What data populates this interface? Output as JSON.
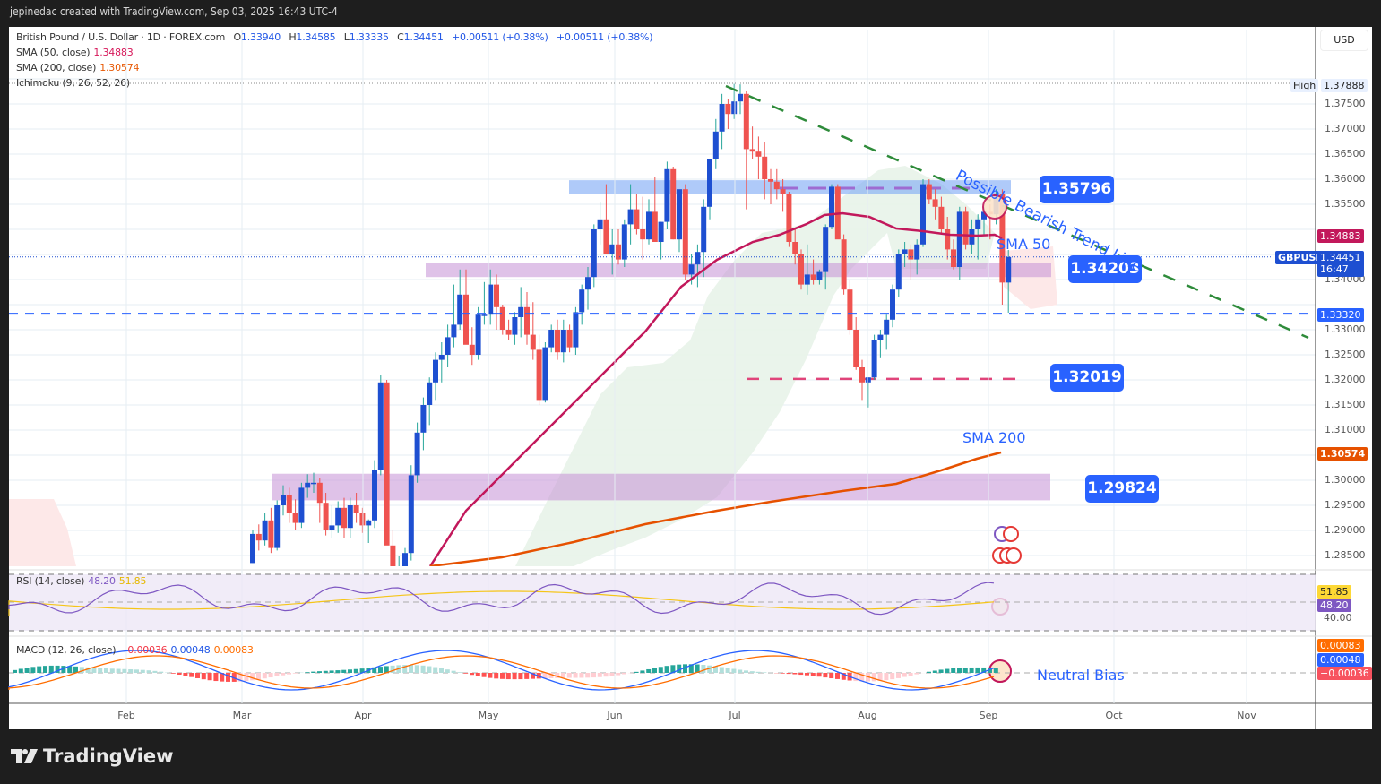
{
  "header": {
    "title": "jepinedac created with TradingView.com, Sep 03, 2025 16:43 UTC-4"
  },
  "symbol": {
    "name": "British Pound / U.S. Dollar · 1D · FOREX.com",
    "open_label": "O",
    "open": "1.33940",
    "high_label": "H",
    "high": "1.34585",
    "low_label": "L",
    "low": "1.33335",
    "close_label": "C",
    "close": "1.34451",
    "change": "+0.00511 (+0.38%)",
    "change2": "+0.00511 (+0.38%)"
  },
  "indicators": {
    "sma50": {
      "label": "SMA (50, close)",
      "value": "1.34883",
      "color": "#d6185a"
    },
    "sma200": {
      "label": "SMA (200, close)",
      "value": "1.30574",
      "color": "#e85a06"
    },
    "ichimoku": {
      "label": "Ichimoku (9, 26, 52, 26)"
    },
    "rsi": {
      "label": "RSI (14, close)",
      "value": "48.20",
      "ma_value": "51.85"
    },
    "macd": {
      "label": "MACD (12, 26, close)",
      "hist": "−0.00036",
      "macd": "0.00048",
      "signal": "0.00083"
    }
  },
  "price_axis": {
    "currency": "USD",
    "ticks": [
      "1.37500",
      "1.37000",
      "1.36500",
      "1.36000",
      "1.35500",
      "1.34000",
      "1.33000",
      "1.32500",
      "1.32000",
      "1.31500",
      "1.31000",
      "1.30000",
      "1.29500",
      "1.29000",
      "1.28500"
    ],
    "high_label": "High",
    "high_value": "1.37888",
    "sma50_tag": "1.34883",
    "symbol_tag": "GBPUSD",
    "last_price": "1.34451",
    "countdown": "16:47",
    "hline_tag": "1.33320",
    "sma200_tag": "1.30574",
    "rsi_ma_tag": "51.85",
    "rsi_tag": "48.20",
    "rsi_tick": "40.00",
    "macd_signal_tag": "0.00083",
    "macd_tag": "0.00048",
    "macd_hist_tag": "−0.00036"
  },
  "annotations": {
    "resistance_top": "1.35796",
    "pivot": "1.34203",
    "support_1": "1.32019",
    "support_2": "1.29824",
    "trend_label": "Possible Bearish Trend Line",
    "sma50_label": "SMA 50",
    "sma200_label": "SMA 200",
    "macd_note": "Neutral Bias"
  },
  "time_axis": [
    "Feb",
    "Mar",
    "Apr",
    "May",
    "Jun",
    "Jul",
    "Aug",
    "Sep",
    "Oct",
    "Nov"
  ],
  "footer": {
    "brand": "TradingView"
  },
  "chart_data": {
    "type": "candlestick",
    "title": "British Pound / U.S. Dollar · 1D · FOREX.com",
    "xlabel": "",
    "ylabel": "USD",
    "ylim": [
      1.2835,
      1.3835
    ],
    "x_ticks": [
      "Feb",
      "Mar",
      "Apr",
      "May",
      "Jun",
      "Jul",
      "Aug",
      "Sep",
      "Oct",
      "Nov"
    ],
    "ohlc_fields": [
      "open",
      "high",
      "low",
      "close"
    ],
    "candles": [
      [
        1.2835,
        1.29,
        1.2835,
        1.2893
      ],
      [
        1.2893,
        1.2912,
        1.286,
        1.288
      ],
      [
        1.288,
        1.2935,
        1.287,
        1.292
      ],
      [
        1.292,
        1.2945,
        1.2855,
        1.2865
      ],
      [
        1.2865,
        1.296,
        1.286,
        1.295
      ],
      [
        1.295,
        1.299,
        1.293,
        1.297
      ],
      [
        1.297,
        1.2985,
        1.2915,
        1.2935
      ],
      [
        1.2935,
        1.2962,
        1.29,
        1.2915
      ],
      [
        1.2915,
        1.2995,
        1.2905,
        1.2985
      ],
      [
        1.2985,
        1.3012,
        1.2965,
        1.2995
      ],
      [
        1.2995,
        1.3015,
        1.2975,
        1.2995
      ],
      [
        1.2995,
        1.3005,
        1.2915,
        1.2955
      ],
      [
        1.2955,
        1.2975,
        1.289,
        1.29
      ],
      [
        1.29,
        1.295,
        1.2885,
        1.291
      ],
      [
        1.291,
        1.2958,
        1.2895,
        1.2945
      ],
      [
        1.2945,
        1.2965,
        1.2885,
        1.2905
      ],
      [
        1.2905,
        1.2965,
        1.2885,
        1.295
      ],
      [
        1.295,
        1.2975,
        1.2915,
        1.2935
      ],
      [
        1.2935,
        1.2945,
        1.2895,
        1.291
      ],
      [
        1.291,
        1.2922,
        1.2875,
        1.292
      ],
      [
        1.292,
        1.304,
        1.2905,
        1.302
      ],
      [
        1.302,
        1.321,
        1.301,
        1.3195
      ],
      [
        1.3195,
        1.32,
        1.298,
        1.287
      ],
      [
        1.287,
        1.29,
        1.282,
        1.28
      ],
      [
        1.28,
        1.285,
        1.278,
        1.281
      ],
      [
        1.281,
        1.2865,
        1.279,
        1.2855
      ],
      [
        1.2855,
        1.303,
        1.284,
        1.301
      ],
      [
        1.301,
        1.3115,
        1.2995,
        1.3095
      ],
      [
        1.3095,
        1.3165,
        1.306,
        1.315
      ],
      [
        1.315,
        1.3205,
        1.311,
        1.3195
      ],
      [
        1.3195,
        1.3255,
        1.316,
        1.324
      ],
      [
        1.324,
        1.3275,
        1.3195,
        1.325
      ],
      [
        1.325,
        1.331,
        1.3225,
        1.3285
      ],
      [
        1.3285,
        1.339,
        1.3265,
        1.331
      ],
      [
        1.331,
        1.342,
        1.33,
        1.337
      ],
      [
        1.337,
        1.342,
        1.331,
        1.327
      ],
      [
        1.327,
        1.3305,
        1.323,
        1.325
      ],
      [
        1.325,
        1.3345,
        1.324,
        1.333
      ],
      [
        1.333,
        1.3395,
        1.331,
        1.333
      ],
      [
        1.333,
        1.342,
        1.331,
        1.339
      ],
      [
        1.339,
        1.341,
        1.33,
        1.3345
      ],
      [
        1.3345,
        1.335,
        1.329,
        1.33
      ],
      [
        1.33,
        1.332,
        1.328,
        1.329
      ],
      [
        1.329,
        1.3335,
        1.327,
        1.3325
      ],
      [
        1.3325,
        1.3385,
        1.3285,
        1.3345
      ],
      [
        1.3345,
        1.3375,
        1.327,
        1.329
      ],
      [
        1.329,
        1.3355,
        1.324,
        1.326
      ],
      [
        1.326,
        1.329,
        1.315,
        1.316
      ],
      [
        1.316,
        1.3275,
        1.3155,
        1.3265
      ],
      [
        1.3265,
        1.331,
        1.3255,
        1.33
      ],
      [
        1.33,
        1.332,
        1.324,
        1.3255
      ],
      [
        1.3255,
        1.332,
        1.3235,
        1.33
      ],
      [
        1.33,
        1.331,
        1.3255,
        1.3265
      ],
      [
        1.3265,
        1.3345,
        1.325,
        1.3335
      ],
      [
        1.3335,
        1.339,
        1.331,
        1.338
      ],
      [
        1.338,
        1.3425,
        1.334,
        1.3405
      ],
      [
        1.3405,
        1.351,
        1.3385,
        1.35
      ],
      [
        1.35,
        1.3555,
        1.347,
        1.352
      ],
      [
        1.352,
        1.359,
        1.346,
        1.345
      ],
      [
        1.345,
        1.35,
        1.341,
        1.347
      ],
      [
        1.347,
        1.35,
        1.343,
        1.344
      ],
      [
        1.344,
        1.352,
        1.3425,
        1.351
      ],
      [
        1.351,
        1.359,
        1.347,
        1.354
      ],
      [
        1.354,
        1.357,
        1.349,
        1.35
      ],
      [
        1.35,
        1.3565,
        1.344,
        1.348
      ],
      [
        1.348,
        1.356,
        1.347,
        1.3535
      ],
      [
        1.3535,
        1.3605,
        1.348,
        1.3475
      ],
      [
        1.3475,
        1.3515,
        1.344,
        1.3515
      ],
      [
        1.3515,
        1.3635,
        1.35,
        1.362
      ],
      [
        1.362,
        1.3625,
        1.348,
        1.348
      ],
      [
        1.348,
        1.3515,
        1.3455,
        1.358
      ],
      [
        1.358,
        1.359,
        1.34,
        1.341
      ],
      [
        1.341,
        1.345,
        1.339,
        1.343
      ],
      [
        1.343,
        1.347,
        1.3385,
        1.3455
      ],
      [
        1.3455,
        1.356,
        1.3405,
        1.3545
      ],
      [
        1.3545,
        1.364,
        1.352,
        1.364
      ],
      [
        1.364,
        1.372,
        1.362,
        1.3695
      ],
      [
        1.3695,
        1.377,
        1.366,
        1.375
      ],
      [
        1.375,
        1.376,
        1.37,
        1.373
      ],
      [
        1.373,
        1.379,
        1.372,
        1.3755
      ],
      [
        1.3755,
        1.3789,
        1.373,
        1.377
      ],
      [
        1.377,
        1.3775,
        1.354,
        1.366
      ],
      [
        1.366,
        1.3705,
        1.364,
        1.3655
      ],
      [
        1.3655,
        1.3685,
        1.36,
        1.3645
      ],
      [
        1.3645,
        1.3675,
        1.356,
        1.36
      ],
      [
        1.36,
        1.362,
        1.355,
        1.3595
      ],
      [
        1.3595,
        1.362,
        1.356,
        1.358
      ],
      [
        1.358,
        1.36,
        1.3535,
        1.357
      ],
      [
        1.357,
        1.3575,
        1.3465,
        1.3475
      ],
      [
        1.3475,
        1.35,
        1.343,
        1.345
      ],
      [
        1.345,
        1.346,
        1.338,
        1.339
      ],
      [
        1.339,
        1.347,
        1.337,
        1.341
      ],
      [
        1.341,
        1.344,
        1.339,
        1.34
      ],
      [
        1.34,
        1.342,
        1.339,
        1.3415
      ],
      [
        1.3415,
        1.351,
        1.338,
        1.3505
      ],
      [
        1.3505,
        1.359,
        1.35,
        1.3585
      ],
      [
        1.3585,
        1.359,
        1.354,
        1.348
      ],
      [
        1.348,
        1.349,
        1.337,
        1.338
      ],
      [
        1.338,
        1.34,
        1.329,
        1.33
      ],
      [
        1.33,
        1.3325,
        1.322,
        1.3225
      ],
      [
        1.3225,
        1.324,
        1.316,
        1.3195
      ],
      [
        1.3195,
        1.3205,
        1.3145,
        1.3205
      ],
      [
        1.3205,
        1.329,
        1.32,
        1.328
      ],
      [
        1.328,
        1.33,
        1.3245,
        1.329
      ],
      [
        1.329,
        1.333,
        1.326,
        1.332
      ],
      [
        1.332,
        1.339,
        1.3305,
        1.338
      ],
      [
        1.338,
        1.346,
        1.3365,
        1.345
      ],
      [
        1.345,
        1.3475,
        1.3425,
        1.346
      ],
      [
        1.346,
        1.347,
        1.34,
        1.344
      ],
      [
        1.344,
        1.348,
        1.341,
        1.347
      ],
      [
        1.347,
        1.36,
        1.3465,
        1.359
      ],
      [
        1.359,
        1.36,
        1.355,
        1.356
      ],
      [
        1.356,
        1.358,
        1.352,
        1.3545
      ],
      [
        1.3545,
        1.3565,
        1.349,
        1.35
      ],
      [
        1.35,
        1.3525,
        1.344,
        1.346
      ],
      [
        1.346,
        1.348,
        1.342,
        1.3425
      ],
      [
        1.3425,
        1.3545,
        1.34,
        1.3535
      ],
      [
        1.3535,
        1.3545,
        1.346,
        1.347
      ],
      [
        1.347,
        1.352,
        1.345,
        1.35
      ],
      [
        1.35,
        1.353,
        1.344,
        1.352
      ],
      [
        1.352,
        1.3545,
        1.349,
        1.3535
      ],
      [
        1.3535,
        1.355,
        1.348,
        1.353
      ],
      [
        1.353,
        1.358,
        1.351,
        1.357
      ],
      [
        1.357,
        1.358,
        1.335,
        1.3394
      ],
      [
        1.3394,
        1.3459,
        1.3334,
        1.3445
      ]
    ],
    "sma50_points": [
      [
        1.2835,
        23
      ],
      [
        1.3,
        40
      ],
      [
        1.32,
        58
      ],
      [
        1.335,
        75
      ],
      [
        1.345,
        90
      ],
      [
        1.35,
        105
      ],
      [
        1.349,
        118
      ]
    ],
    "sma200_last": 1.30574,
    "horizontal_levels": [
      {
        "price": 1.3332,
        "style": "dashed",
        "color": "#2962ff"
      },
      {
        "price": 1.32019,
        "style": "dashed",
        "color": "#e0447a"
      },
      {
        "price": 1.37888,
        "style": "dotted",
        "label": "High"
      }
    ],
    "zones": [
      {
        "from": 1.357,
        "to": 1.3598,
        "color": "blue",
        "label": "1.35796"
      },
      {
        "from": 1.3405,
        "to": 1.3433,
        "color": "purple",
        "label": "1.34203"
      },
      {
        "from": 1.296,
        "to": 1.3013,
        "color": "purple",
        "label": "1.29824"
      }
    ],
    "trend_line": {
      "from": {
        "x_date": "Jun 30",
        "price": 1.3785
      },
      "to": {
        "x_date": "Nov 5",
        "price": 1.329
      },
      "label": "Possible Bearish Trend Line"
    },
    "rsi": {
      "value": 48.2,
      "ma": 51.85,
      "bands": [
        30,
        70
      ],
      "mid": 50
    },
    "macd": {
      "macd": 0.00048,
      "signal": 0.00083,
      "histogram": -0.00036
    }
  }
}
